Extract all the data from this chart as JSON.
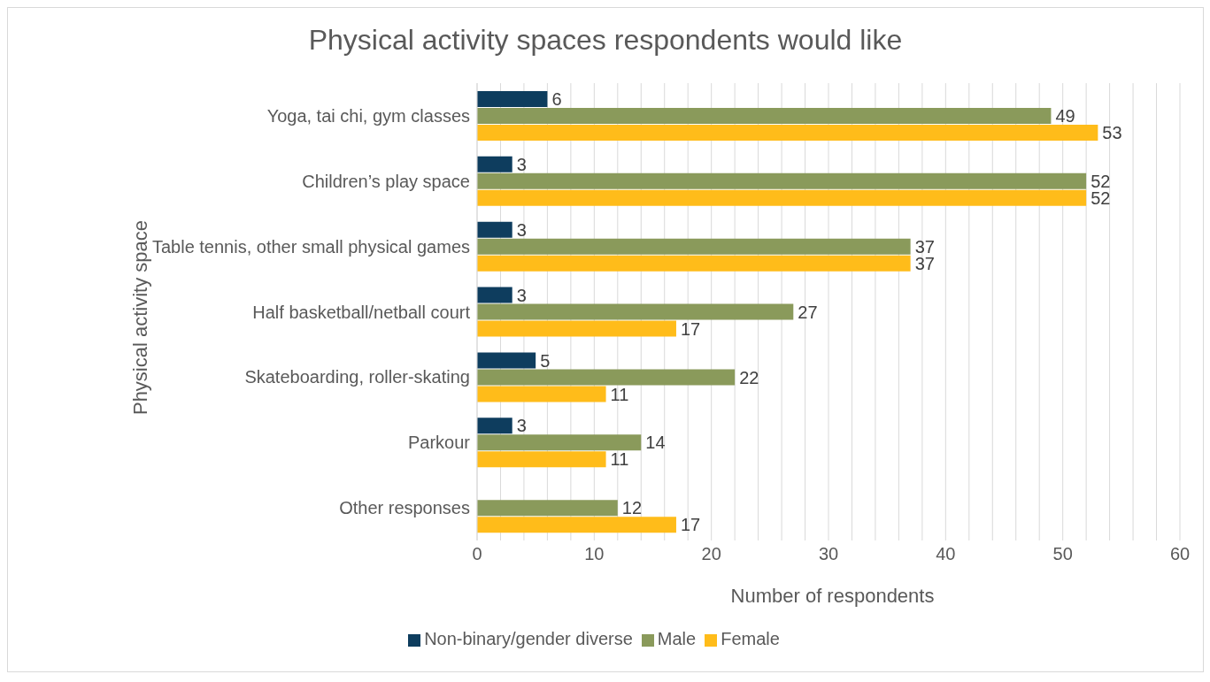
{
  "chart_data": {
    "type": "bar",
    "orientation": "horizontal",
    "title": "Physical activity spaces respondents would like",
    "xlabel": "Number of respondents",
    "ylabel": "Physical activity space",
    "categories": [
      "Yoga, tai chi, gym classes",
      "Children’s play space",
      "Table tennis, other small physical games",
      "Half basketball/netball court",
      "Skateboarding, roller-skating",
      "Parkour",
      "Other responses"
    ],
    "series": [
      {
        "name": "Non-binary/gender diverse",
        "color": "#0e3d5e",
        "values": [
          6,
          3,
          3,
          3,
          5,
          3,
          null
        ]
      },
      {
        "name": "Male",
        "color": "#8a9a5b",
        "values": [
          49,
          52,
          37,
          27,
          22,
          14,
          12
        ]
      },
      {
        "name": "Female",
        "color": "#ffbc1a",
        "values": [
          53,
          52,
          37,
          17,
          11,
          11,
          17
        ]
      }
    ],
    "xlim": [
      0,
      60
    ],
    "xticks": [
      0,
      {
        "value": 2,
        "label": null
      },
      {
        "value": 4,
        "label": null
      },
      {
        "value": 6,
        "label": null
      },
      {
        "value": 8,
        "label": null
      },
      10,
      {
        "value": 12,
        "label": null
      },
      {
        "value": 14,
        "label": null
      },
      {
        "value": 16,
        "label": null
      },
      {
        "value": 18,
        "label": null
      },
      20,
      {
        "value": 22,
        "label": null
      },
      {
        "value": 24,
        "label": null
      },
      {
        "value": 26,
        "label": null
      },
      {
        "value": 28,
        "label": null
      },
      30,
      {
        "value": 32,
        "label": null
      },
      {
        "value": 34,
        "label": null
      },
      {
        "value": 36,
        "label": null
      },
      {
        "value": 38,
        "label": null
      },
      40,
      {
        "value": 42,
        "label": null
      },
      {
        "value": 44,
        "label": null
      },
      {
        "value": 46,
        "label": null
      },
      {
        "value": 48,
        "label": null
      },
      50,
      {
        "value": 52,
        "label": null
      },
      {
        "value": 54,
        "label": null
      },
      {
        "value": 56,
        "label": null
      },
      {
        "value": 58,
        "label": null
      },
      60
    ],
    "grid": "x",
    "legend": "bottom",
    "data_labels": true
  }
}
